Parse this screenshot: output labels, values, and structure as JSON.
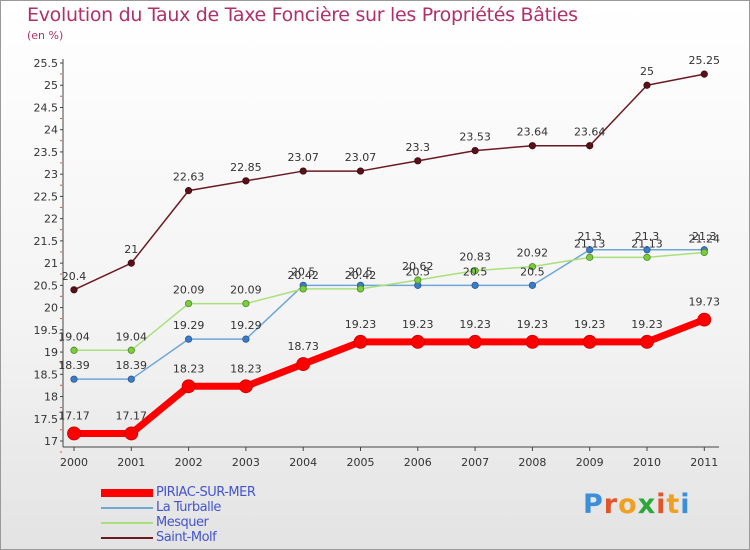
{
  "title": "Evolution du Taux de Taxe Foncière sur les Propriétés Bâties",
  "subtitle": "(en %)",
  "logo": {
    "text": "Proxiti",
    "colors": [
      "#3a8fd8",
      "#e0552a",
      "#f0a020",
      "#2aa838",
      "#e0552a",
      "#f0a020",
      "#3a8fd8"
    ]
  },
  "chart_data": {
    "type": "line",
    "title": "Evolution du Taux de Taxe Foncière sur les Propriétés Bâties",
    "ylabel": "(en %)",
    "xlabel": "",
    "x": [
      "2000",
      "2001",
      "2002",
      "2003",
      "2004",
      "2005",
      "2006",
      "2007",
      "2008",
      "2009",
      "2010",
      "2011"
    ],
    "ylim": [
      17,
      25.5
    ],
    "yticks": [
      "17",
      "17.5",
      "18",
      "18.5",
      "19",
      "19.5",
      "20",
      "20.5",
      "21",
      "21.5",
      "22",
      "22.5",
      "23",
      "23.5",
      "24",
      "24.5",
      "25",
      "25.5"
    ],
    "legend_position": "bottom-left",
    "series": [
      {
        "name": "Saint-Molf",
        "color": "#6b1a22",
        "values": [
          20.4,
          21,
          22.63,
          22.85,
          23.07,
          23.07,
          23.3,
          23.53,
          23.64,
          23.64,
          25,
          25.25
        ],
        "labels": [
          "20.4",
          "21",
          "22.63",
          "22.85",
          "23.07",
          "23.07",
          "23.3",
          "23.53",
          "23.64",
          "23.64",
          "25",
          "25.25"
        ]
      },
      {
        "name": "La Turballe",
        "color": "#6fa6d8",
        "values": [
          18.39,
          18.39,
          19.29,
          19.29,
          20.5,
          20.5,
          20.5,
          20.5,
          20.5,
          21.3,
          21.3,
          21.3
        ],
        "labels": [
          "18.39",
          "18.39",
          "19.29",
          "19.29",
          "20.5",
          "20.5",
          "20.5",
          "20.5",
          "20.5",
          "21.3",
          "21.3",
          "21.3"
        ]
      },
      {
        "name": "Mesquer",
        "color": "#a8e07a",
        "values": [
          19.04,
          19.04,
          20.09,
          20.09,
          20.42,
          20.42,
          20.62,
          20.83,
          20.92,
          21.13,
          21.13,
          21.24
        ],
        "labels": [
          "19.04",
          "19.04",
          "20.09",
          "20.09",
          "20.42",
          "20.42",
          "20.62",
          "20.83",
          "20.92",
          "21.13",
          "21.13",
          "21.24"
        ]
      },
      {
        "name": "PIRIAC-SUR-MER",
        "color": "#ff0000",
        "values": [
          17.17,
          17.17,
          18.23,
          18.23,
          18.73,
          19.23,
          19.23,
          19.23,
          19.23,
          19.23,
          19.23,
          19.73
        ],
        "labels": [
          "17.17",
          "17.17",
          "18.23",
          "18.23",
          "18.73",
          "19.23",
          "19.23",
          "19.23",
          "19.23",
          "19.23",
          "19.23",
          "19.73"
        ]
      }
    ],
    "legend": [
      "PIRIAC-SUR-MER",
      "La Turballe",
      "Mesquer",
      "Saint-Molf"
    ]
  }
}
